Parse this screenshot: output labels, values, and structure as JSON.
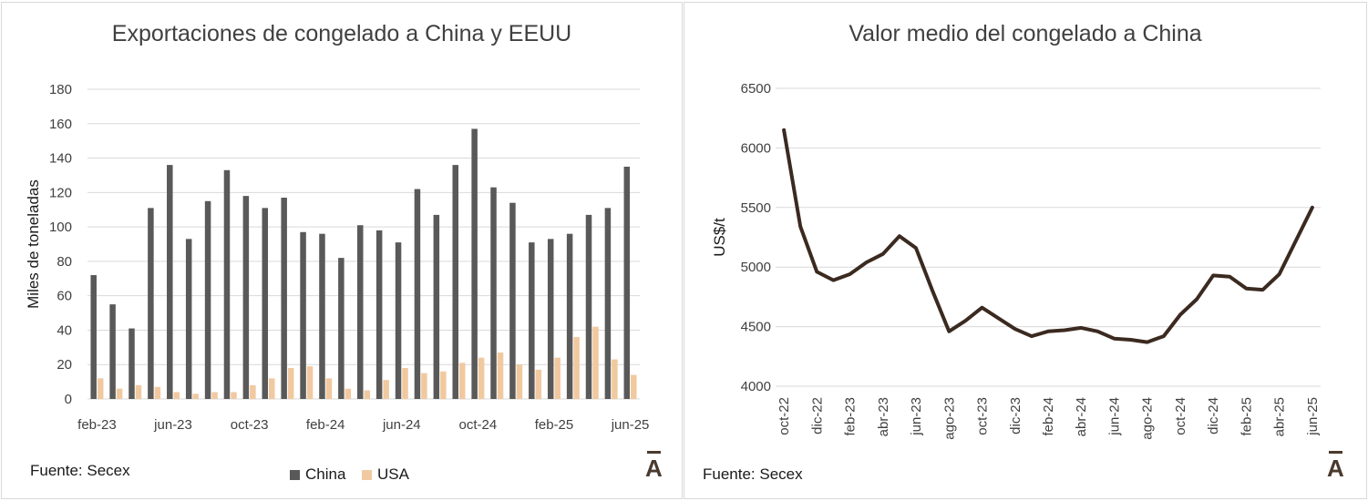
{
  "left": {
    "source": "Fuente: Secex",
    "logo": "A",
    "chart_data": {
      "type": "bar",
      "title": "Exportaciones de congelado a China y EEUU",
      "xlabel": "",
      "ylabel": "Miles de toneladas",
      "ylim": [
        0,
        180
      ],
      "yticks": [
        0,
        20,
        40,
        60,
        80,
        100,
        120,
        140,
        160,
        180
      ],
      "categories": [
        "feb-23",
        "mar-23",
        "abr-23",
        "may-23",
        "jun-23",
        "jul-23",
        "ago-23",
        "sep-23",
        "oct-23",
        "nov-23",
        "dic-23",
        "ene-24",
        "feb-24",
        "mar-24",
        "abr-24",
        "may-24",
        "jun-24",
        "jul-24",
        "ago-24",
        "sep-24",
        "oct-24",
        "nov-24",
        "dic-24",
        "ene-25",
        "feb-25",
        "mar-25",
        "abr-25",
        "may-25",
        "jun-25"
      ],
      "xtick_labels": [
        "feb-23",
        "jun-23",
        "oct-23",
        "feb-24",
        "jun-24",
        "oct-24",
        "feb-25",
        "jun-25"
      ],
      "xtick_every": 4,
      "grid": true,
      "legend": "bottom",
      "series": [
        {
          "name": "China",
          "color": "#595959",
          "values": [
            72,
            55,
            41,
            111,
            136,
            93,
            115,
            133,
            118,
            111,
            117,
            97,
            96,
            82,
            101,
            98,
            91,
            122,
            107,
            136,
            157,
            123,
            114,
            91,
            93,
            96,
            107,
            111,
            135
          ]
        },
        {
          "name": "USA",
          "color": "#f1c9a0",
          "values": [
            12,
            6,
            8,
            7,
            4,
            3,
            4,
            4,
            8,
            12,
            18,
            19,
            12,
            6,
            5,
            11,
            18,
            15,
            16,
            21,
            24,
            27,
            20,
            17,
            24,
            36,
            42,
            23,
            14
          ]
        }
      ]
    }
  },
  "right": {
    "source": "Fuente: Secex",
    "logo": "A",
    "chart_data": {
      "type": "line",
      "title": "Valor medio del congelado a China",
      "xlabel": "",
      "ylabel": "US$/t",
      "ylim": [
        4000,
        6500
      ],
      "yticks": [
        4000,
        4500,
        5000,
        5500,
        6000,
        6500
      ],
      "x": [
        "oct-22",
        "nov-22",
        "dic-22",
        "ene-23",
        "feb-23",
        "mar-23",
        "abr-23",
        "may-23",
        "jun-23",
        "jul-23",
        "ago-23",
        "sep-23",
        "oct-23",
        "nov-23",
        "dic-23",
        "ene-24",
        "feb-24",
        "mar-24",
        "abr-24",
        "may-24",
        "jun-24",
        "jul-24",
        "ago-24",
        "sep-24",
        "oct-24",
        "nov-24",
        "dic-24",
        "ene-25",
        "feb-25",
        "mar-25",
        "abr-25",
        "may-25",
        "jun-25"
      ],
      "xtick_labels": [
        "oct-22",
        "dic-22",
        "feb-23",
        "abr-23",
        "jun-23",
        "ago-23",
        "oct-23",
        "dic-23",
        "feb-24",
        "abr-24",
        "jun-24",
        "ago-24",
        "oct-24",
        "dic-24",
        "feb-25",
        "abr-25",
        "jun-25"
      ],
      "xtick_every": 2,
      "grid": true,
      "series": [
        {
          "color": "#3b2a20",
          "values": [
            6150,
            5340,
            4960,
            4890,
            4940,
            5040,
            5110,
            5260,
            5160,
            4800,
            4460,
            4550,
            4660,
            4570,
            4480,
            4420,
            4460,
            4470,
            4490,
            4460,
            4400,
            4390,
            4370,
            4420,
            4600,
            4730,
            4930,
            4920,
            4820,
            4810,
            4940,
            5220,
            5500
          ]
        }
      ]
    }
  }
}
